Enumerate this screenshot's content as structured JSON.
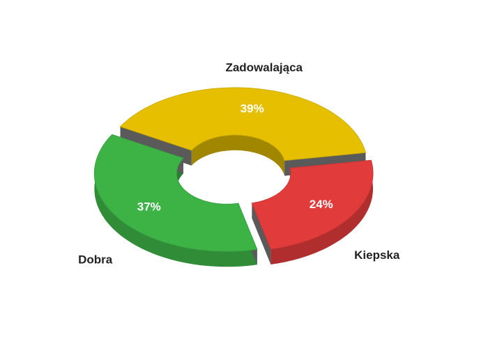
{
  "chart_data": {
    "type": "donut",
    "categories": [
      "Zadowalająca",
      "Kiepska",
      "Dobra"
    ],
    "values": [
      39,
      24,
      37
    ],
    "value_labels": [
      "39%",
      "24%",
      "37%"
    ],
    "colors": [
      "#e6c000",
      "#e23b3b",
      "#3db346"
    ]
  }
}
